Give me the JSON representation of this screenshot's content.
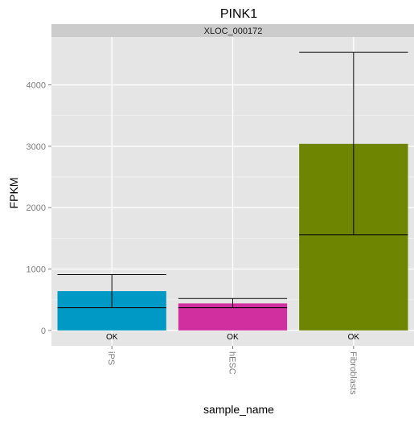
{
  "chart_data": {
    "type": "bar",
    "title": "PINK1",
    "facet_label": "XLOC_000172",
    "xlabel": "sample_name",
    "ylabel": "FPKM",
    "categories": [
      "iPS",
      "hESC",
      "Fibroblasts"
    ],
    "values": [
      640,
      440,
      3040
    ],
    "error_bars": [
      {
        "low": 370,
        "high": 910
      },
      {
        "low": 370,
        "high": 520
      },
      {
        "low": 1560,
        "high": 4530
      }
    ],
    "bar_labels": [
      "OK",
      "OK",
      "OK"
    ],
    "colors": [
      "#0099C6",
      "#D12FA0",
      "#6D8500"
    ],
    "ylim": [
      -250,
      4780
    ],
    "yticks": [
      0,
      1000,
      2000,
      3000,
      4000
    ],
    "ytick_labels": [
      "0",
      "1000",
      "2000",
      "3000",
      "4000"
    ],
    "grid": true,
    "panel_color": "#E5E5E5",
    "strip_color": "#CCCCCC",
    "x_tick_rotation": "90deg"
  }
}
